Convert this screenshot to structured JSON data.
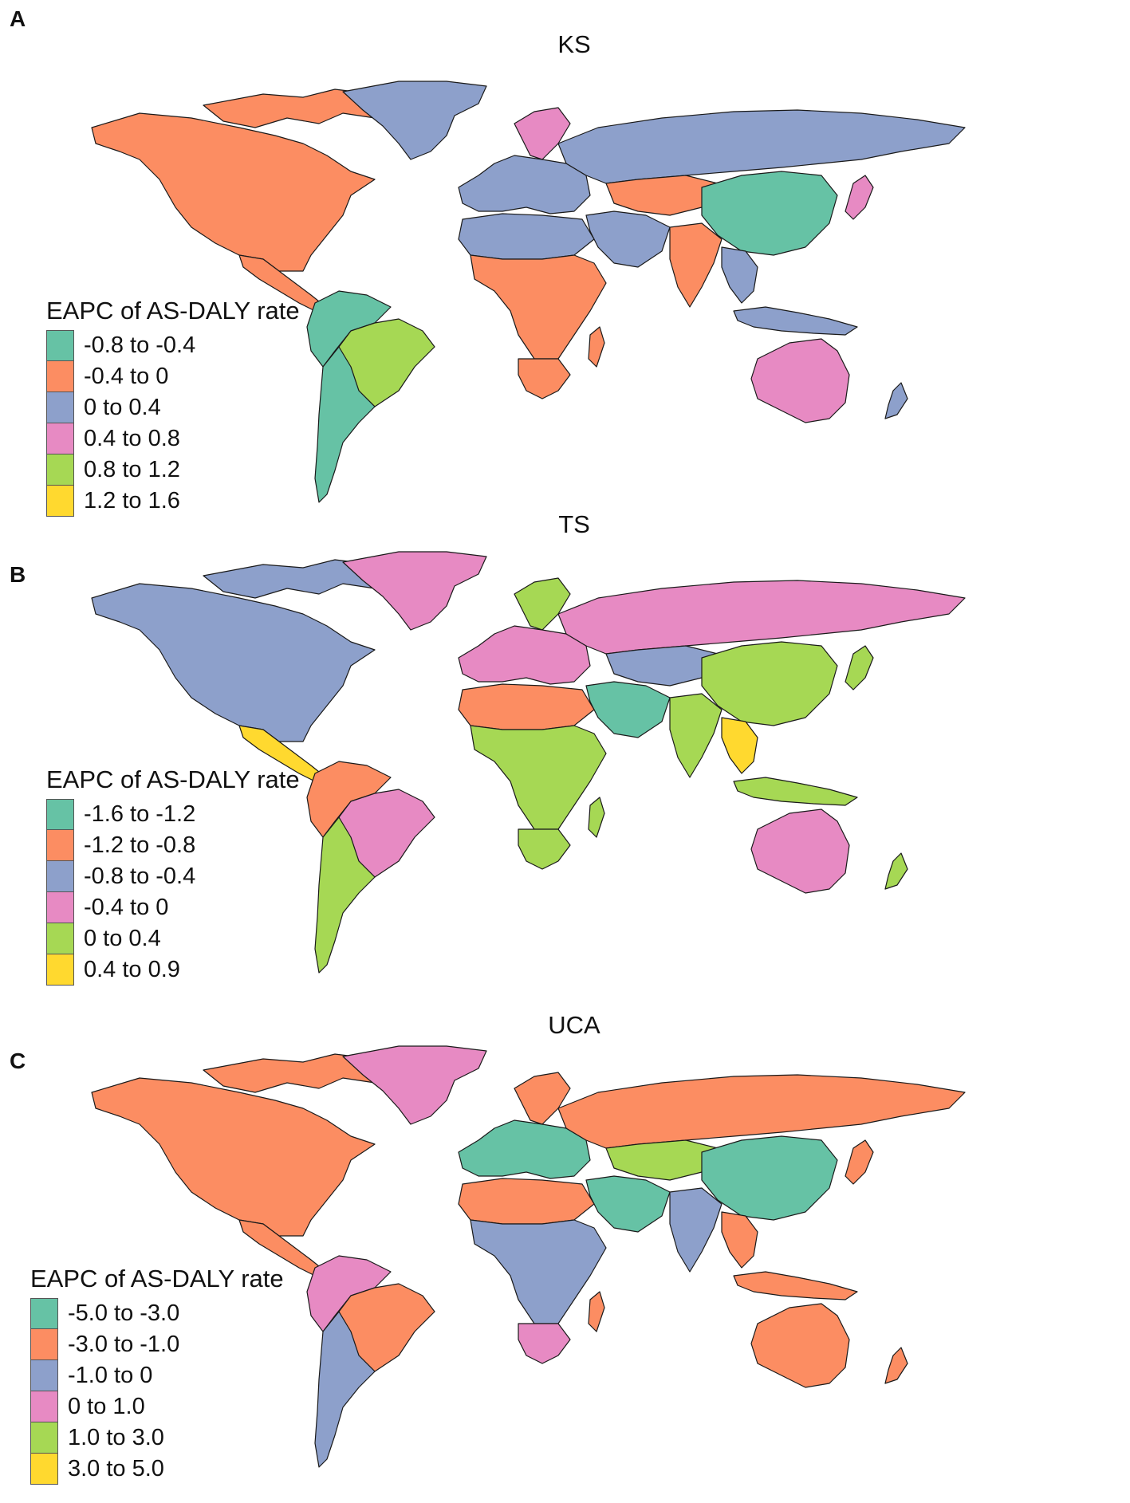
{
  "colors": {
    "teal": "#66c2a5",
    "orange": "#fc8d62",
    "blue": "#8da0cb",
    "pink": "#e78ac3",
    "green": "#a6d854",
    "yellow": "#ffd92f"
  },
  "panels": [
    {
      "letter": "A",
      "title": "KS",
      "legend_title": "EAPC of AS-DALY rate",
      "legend": [
        {
          "label": "-0.8 to -0.4",
          "color": "#66c2a5"
        },
        {
          "label": "-0.4 to 0",
          "color": "#fc8d62"
        },
        {
          "label": "0 to 0.4",
          "color": "#8da0cb"
        },
        {
          "label": "0.4 to 0.8",
          "color": "#e78ac3"
        },
        {
          "label": "0.8 to 1.2",
          "color": "#a6d854"
        },
        {
          "label": "1.2 to 1.6",
          "color": "#ffd92f"
        }
      ],
      "regions": {
        "north_america": "#fc8d62",
        "arctic_islands": "#fc8d62",
        "greenland": "#8da0cb",
        "central_america": "#fc8d62",
        "south_america_north": "#66c2a5",
        "brazil": "#a6d854",
        "south_america_south": "#66c2a5",
        "europe": "#8da0cb",
        "scandinavia": "#e78ac3",
        "russia": "#8da0cb",
        "middle_east": "#8da0cb",
        "central_asia": "#fc8d62",
        "north_africa": "#8da0cb",
        "sub_saharan_africa": "#fc8d62",
        "south_africa": "#fc8d62",
        "madagascar": "#fc8d62",
        "india": "#fc8d62",
        "china": "#66c2a5",
        "southeast_asia": "#8da0cb",
        "japan": "#e78ac3",
        "indonesia": "#8da0cb",
        "australia": "#e78ac3",
        "new_zealand": "#8da0cb"
      }
    },
    {
      "letter": "B",
      "title": "TS",
      "legend_title": "EAPC of AS-DALY rate",
      "legend": [
        {
          "label": "-1.6 to -1.2",
          "color": "#66c2a5"
        },
        {
          "label": "-1.2 to -0.8",
          "color": "#fc8d62"
        },
        {
          "label": "-0.8 to -0.4",
          "color": "#8da0cb"
        },
        {
          "label": "-0.4 to 0",
          "color": "#e78ac3"
        },
        {
          "label": "0 to 0.4",
          "color": "#a6d854"
        },
        {
          "label": "0.4 to 0.9",
          "color": "#ffd92f"
        }
      ],
      "regions": {
        "north_america": "#8da0cb",
        "arctic_islands": "#8da0cb",
        "greenland": "#e78ac3",
        "central_america": "#ffd92f",
        "south_america_north": "#fc8d62",
        "brazil": "#e78ac3",
        "south_america_south": "#a6d854",
        "europe": "#e78ac3",
        "scandinavia": "#a6d854",
        "russia": "#e78ac3",
        "middle_east": "#66c2a5",
        "central_asia": "#8da0cb",
        "north_africa": "#fc8d62",
        "sub_saharan_africa": "#a6d854",
        "south_africa": "#a6d854",
        "madagascar": "#a6d854",
        "india": "#a6d854",
        "china": "#a6d854",
        "southeast_asia": "#ffd92f",
        "japan": "#a6d854",
        "indonesia": "#a6d854",
        "australia": "#e78ac3",
        "new_zealand": "#a6d854"
      }
    },
    {
      "letter": "C",
      "title": "UCA",
      "legend_title": "EAPC of AS-DALY rate",
      "legend": [
        {
          "label": "-5.0 to -3.0",
          "color": "#66c2a5"
        },
        {
          "label": "-3.0 to -1.0",
          "color": "#fc8d62"
        },
        {
          "label": "-1.0 to 0",
          "color": "#8da0cb"
        },
        {
          "label": "0 to 1.0",
          "color": "#e78ac3"
        },
        {
          "label": "1.0 to 3.0",
          "color": "#a6d854"
        },
        {
          "label": "3.0 to 5.0",
          "color": "#ffd92f"
        }
      ],
      "regions": {
        "north_america": "#fc8d62",
        "arctic_islands": "#fc8d62",
        "greenland": "#e78ac3",
        "central_america": "#fc8d62",
        "south_america_north": "#e78ac3",
        "brazil": "#fc8d62",
        "south_america_south": "#8da0cb",
        "europe": "#66c2a5",
        "scandinavia": "#fc8d62",
        "russia": "#fc8d62",
        "middle_east": "#66c2a5",
        "central_asia": "#a6d854",
        "north_africa": "#fc8d62",
        "sub_saharan_africa": "#8da0cb",
        "south_africa": "#e78ac3",
        "madagascar": "#fc8d62",
        "india": "#8da0cb",
        "china": "#66c2a5",
        "southeast_asia": "#fc8d62",
        "japan": "#fc8d62",
        "indonesia": "#fc8d62",
        "australia": "#fc8d62",
        "new_zealand": "#fc8d62"
      }
    }
  ]
}
